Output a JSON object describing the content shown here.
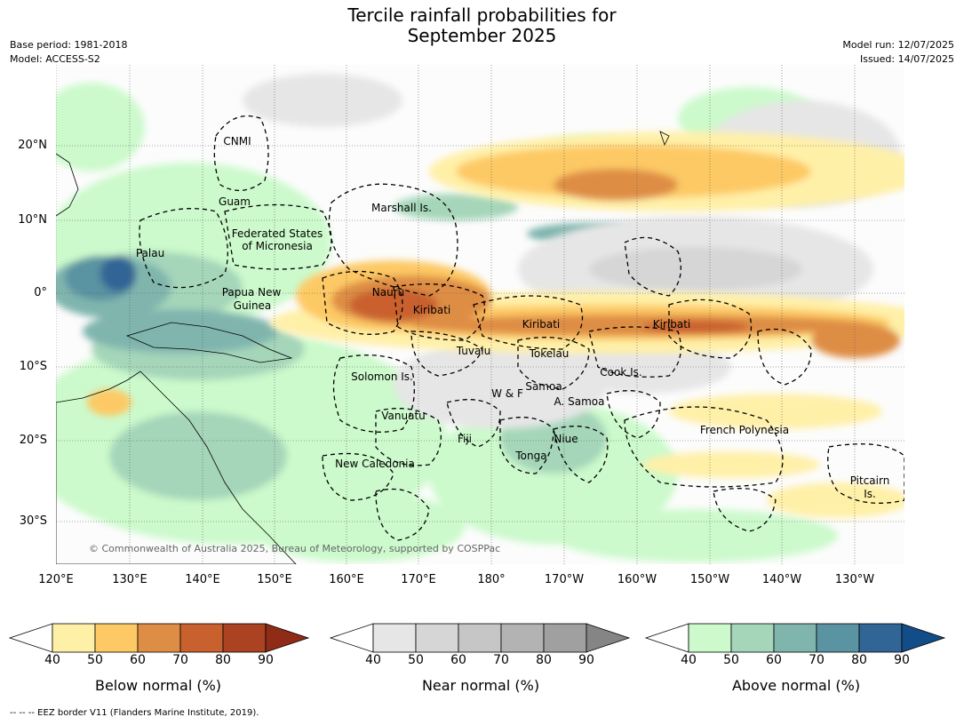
{
  "title_line1": "Tercile rainfall probabilities for",
  "title_line2": "September 2025",
  "meta": {
    "base_period": "Base period: 1981-2018",
    "model": "Model: ACCESS-S2",
    "model_run": "Model run: 12/07/2025",
    "issued": "Issued: 14/07/2025"
  },
  "map": {
    "lat_labels": [
      "20°N",
      "10°N",
      "0°",
      "10°S",
      "20°S",
      "30°S"
    ],
    "lon_labels": [
      "120°E",
      "130°E",
      "140°E",
      "150°E",
      "160°E",
      "170°E",
      "180°",
      "170°W",
      "160°W",
      "150°W",
      "140°W",
      "130°W"
    ],
    "places": [
      {
        "name": "CNMI"
      },
      {
        "name": "Guam"
      },
      {
        "name": "Marshall Is."
      },
      {
        "name": "Federated States"
      },
      {
        "name": "of Micronesia"
      },
      {
        "name": "Palau"
      },
      {
        "name": "Papua New"
      },
      {
        "name": "Guinea"
      },
      {
        "name": "Nauru"
      },
      {
        "name": "Kiribati"
      },
      {
        "name": "Kiribati"
      },
      {
        "name": "Kiribati"
      },
      {
        "name": "Tuvalu"
      },
      {
        "name": "Tokelau"
      },
      {
        "name": "Solomon Is."
      },
      {
        "name": "Cook Is."
      },
      {
        "name": "W & F"
      },
      {
        "name": "Samoa"
      },
      {
        "name": "A. Samoa"
      },
      {
        "name": "Vanuatu"
      },
      {
        "name": "Fiji"
      },
      {
        "name": "Niue"
      },
      {
        "name": "French Polynesia"
      },
      {
        "name": "Tonga"
      },
      {
        "name": "New Caledonia"
      },
      {
        "name": "Pitcairn"
      },
      {
        "name": "Is."
      }
    ],
    "copyright": "© Commonwealth of Australia 2025, Bureau of Meteorology, supported by COSPPac"
  },
  "colorbars": [
    {
      "label": "Below normal (%)",
      "ticks": [
        "40",
        "50",
        "60",
        "70",
        "80",
        "90"
      ],
      "colors": [
        "#fff0a8",
        "#fdc965",
        "#de8d45",
        "#c9612f",
        "#ab4222",
        "#8f2b16"
      ]
    },
    {
      "label": "Near normal (%)",
      "ticks": [
        "40",
        "50",
        "60",
        "70",
        "80",
        "90"
      ],
      "colors": [
        "#e6e6e6",
        "#d6d6d6",
        "#c6c6c6",
        "#b3b3b3",
        "#a0a0a0",
        "#858585"
      ]
    },
    {
      "label": "Above normal (%)",
      "ticks": [
        "40",
        "50",
        "60",
        "70",
        "80",
        "90"
      ],
      "colors": [
        "#ccfacc",
        "#a5d6b9",
        "#80b5ae",
        "#5a93a1",
        "#306596",
        "#134d88"
      ]
    }
  ],
  "footnote": "--  --  -- EEZ border V11 (Flanders Marine Institute, 2019)."
}
